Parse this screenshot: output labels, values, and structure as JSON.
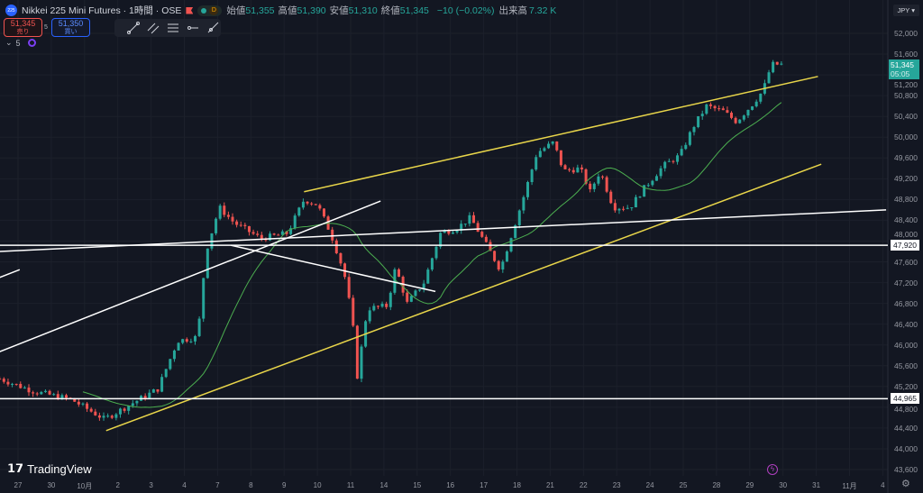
{
  "header": {
    "symbol_badge": "225",
    "title": "Nikkei 225 Mini Futures · 1時間 · OSE",
    "d_badge": "D",
    "ohlc": [
      {
        "k": "始値",
        "v": "51,355"
      },
      {
        "k": "高値",
        "v": "51,390"
      },
      {
        "k": "安値",
        "v": "51,310"
      },
      {
        "k": "終値",
        "v": "51,345"
      }
    ],
    "change": "−10 (−0.02%)",
    "volume_label": "出来高",
    "volume": "7.32 K"
  },
  "trade": {
    "sell_price": "51,345",
    "sell_label": "売り",
    "spread": "5",
    "buy_price": "51,350",
    "buy_label": "買い"
  },
  "indicators": {
    "count": "5"
  },
  "currency": "JPY",
  "current": {
    "price": "51,345",
    "countdown": "05:05"
  },
  "price_tags": [
    "47,920",
    "44,965"
  ],
  "brand": "TradingView",
  "colors": {
    "up": "#26a69a",
    "down": "#ef5350",
    "ma": "#4caf50",
    "channel": "#e8d54a",
    "line": "#ffffff"
  },
  "chart_data": {
    "type": "candlestick",
    "title": "Nikkei 225 Mini Futures 1H",
    "ylim": [
      43600,
      52000
    ],
    "yticks": [
      "52,000",
      "51,600",
      "51,200",
      "50,800",
      "50,400",
      "50,000",
      "49,600",
      "49,200",
      "48,800",
      "48,400",
      "48,000",
      "47,600",
      "47,200",
      "46,800",
      "46,400",
      "46,000",
      "45,600",
      "45,200",
      "44,800",
      "44,400",
      "44,000",
      "43,600"
    ],
    "xticks": [
      "27",
      "30",
      "10月",
      "2",
      "3",
      "4",
      "7",
      "8",
      "9",
      "10",
      "11",
      "14",
      "15",
      "16",
      "17",
      "18",
      "21",
      "22",
      "23",
      "24",
      "25",
      "28",
      "29",
      "30",
      "31",
      "11月",
      "4"
    ],
    "xlim": [
      -0.55,
      26.1
    ],
    "path_day_price": [
      [
        -0.55,
        45350
      ],
      [
        0.5,
        45100
      ],
      [
        1.6,
        44950
      ],
      [
        2.6,
        44570
      ],
      [
        3.5,
        44900
      ],
      [
        4.2,
        45150
      ],
      [
        4.8,
        46080
      ],
      [
        5.4,
        46150
      ],
      [
        5.65,
        47800
      ],
      [
        6.05,
        48650
      ],
      [
        6.5,
        48350
      ],
      [
        7.3,
        48050
      ],
      [
        8.1,
        48150
      ],
      [
        8.6,
        48800
      ],
      [
        9.0,
        48700
      ],
      [
        9.4,
        48150
      ],
      [
        9.8,
        47400
      ],
      [
        10.05,
        46500
      ],
      [
        10.2,
        45400
      ],
      [
        10.5,
        46700
      ],
      [
        11.1,
        46750
      ],
      [
        11.35,
        47500
      ],
      [
        11.7,
        46800
      ],
      [
        12.2,
        47200
      ],
      [
        12.7,
        48150
      ],
      [
        13.2,
        48250
      ],
      [
        13.6,
        48450
      ],
      [
        14.1,
        47900
      ],
      [
        14.5,
        47450
      ],
      [
        14.9,
        48250
      ],
      [
        15.2,
        48850
      ],
      [
        15.6,
        49700
      ],
      [
        16.1,
        49900
      ],
      [
        16.4,
        49350
      ],
      [
        16.9,
        49400
      ],
      [
        17.2,
        48950
      ],
      [
        17.5,
        49350
      ],
      [
        17.9,
        48650
      ],
      [
        18.4,
        48650
      ],
      [
        18.8,
        49000
      ],
      [
        19.4,
        49450
      ],
      [
        19.9,
        49650
      ],
      [
        20.3,
        50200
      ],
      [
        20.7,
        50600
      ],
      [
        21.2,
        50500
      ],
      [
        21.6,
        50300
      ],
      [
        22.1,
        50650
      ],
      [
        22.4,
        50900
      ],
      [
        22.65,
        51400
      ],
      [
        23.0,
        51400
      ]
    ],
    "drawings": [
      {
        "kind": "channel-top",
        "from": [
          8.6,
          48950
        ],
        "to": [
          24.05,
          51170
        ]
      },
      {
        "kind": "channel-bottom",
        "from": [
          2.65,
          44350
        ],
        "to": [
          24.15,
          49480
        ]
      },
      {
        "kind": "line",
        "from": [
          -0.55,
          47800
        ],
        "to": [
          26.1,
          48600
        ]
      },
      {
        "kind": "line",
        "from": [
          -0.55,
          45870
        ],
        "to": [
          10.9,
          48770
        ]
      },
      {
        "kind": "line",
        "from": [
          6.4,
          47920
        ],
        "to": [
          12.55,
          47030
        ]
      },
      {
        "kind": "line",
        "from": [
          -0.55,
          47300
        ],
        "to": [
          0.05,
          47450
        ]
      },
      {
        "kind": "hline",
        "price": 47920
      },
      {
        "kind": "hline",
        "price": 44965
      }
    ]
  }
}
